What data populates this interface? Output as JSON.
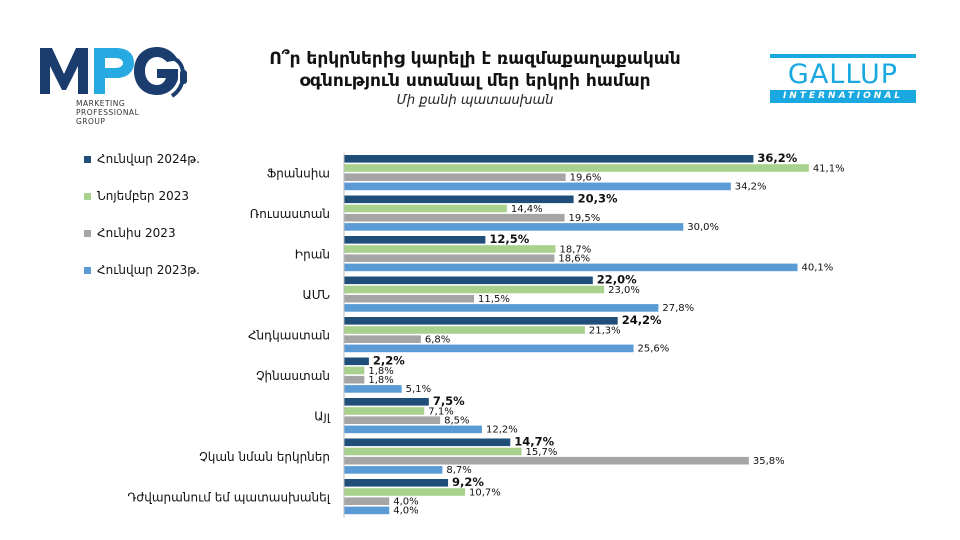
{
  "title": {
    "line1": "Ո՞ր երկրներից կարելի է ռազմաքաղաքական",
    "line2": "օգնություն ստանալ մեր երկրի համար",
    "subtitle": "Մի քանի պատասխան"
  },
  "logos": {
    "mpg": {
      "mark": "MPG",
      "tagline": [
        "MARKETING",
        "PROFESSIONAL",
        "GROUP"
      ],
      "colors": [
        "#1a3d6e",
        "#27a9e1"
      ]
    },
    "gallup": {
      "word": "GALLUP",
      "sub": "INTERNATIONAL",
      "color": "#1aa8e0"
    }
  },
  "chart_data": {
    "type": "bar",
    "orientation": "horizontal",
    "categories": [
      "Ֆրանսիա",
      "Ռուսաստան",
      "Իրան",
      "ԱՄՆ",
      "Հնդկաստան",
      "Չինաստան",
      "Այլ",
      "Չկան նման երկրներ",
      "Դժվարանում եմ պատասխանել"
    ],
    "series": [
      {
        "name": "Հունվար 2024թ.",
        "color": "#1f4e79",
        "values": [
          36.2,
          20.3,
          12.5,
          22.0,
          24.2,
          2.2,
          7.5,
          14.7,
          9.2
        ],
        "labels": [
          "36,2%",
          "20,3%",
          "12,5%",
          "22,0%",
          "24,2%",
          "2,2%",
          "7,5%",
          "14,7%",
          "9,2%"
        ]
      },
      {
        "name": "Նոյեմբեր 2023",
        "color": "#a9d18e",
        "values": [
          41.1,
          14.4,
          18.7,
          23.0,
          21.3,
          1.8,
          7.1,
          15.7,
          10.7
        ],
        "labels": [
          "41,1%",
          "14,4%",
          "18,7%",
          "23,0%",
          "21,3%",
          "1,8%",
          "7,1%",
          "15,7%",
          "10,7%"
        ]
      },
      {
        "name": "Հունիս 2023",
        "color": "#a5a5a5",
        "values": [
          19.6,
          19.5,
          18.6,
          11.5,
          6.8,
          1.8,
          8.5,
          35.8,
          4.0
        ],
        "labels": [
          "19,6%",
          "19,5%",
          "18,6%",
          "11,5%",
          "6,8%",
          "1,8%",
          "8,5%",
          "35,8%",
          "4,0%"
        ]
      },
      {
        "name": "Հունվար 2023թ.",
        "color": "#5b9bd5",
        "values": [
          34.2,
          30.0,
          40.1,
          27.8,
          25.6,
          5.1,
          12.2,
          8.7,
          4.0
        ],
        "labels": [
          "34,2%",
          "30,0%",
          "40,1%",
          "27,8%",
          "25,6%",
          "5,1%",
          "12,2%",
          "8,7%",
          "4,0%"
        ]
      }
    ],
    "xlim": [
      0,
      42
    ],
    "legend_position": "left",
    "grid": false
  }
}
